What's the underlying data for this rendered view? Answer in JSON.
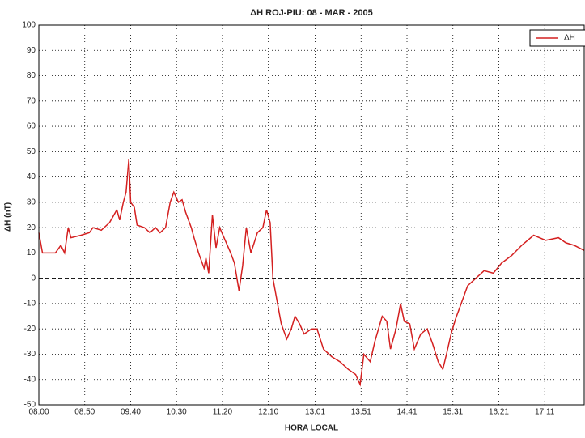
{
  "chart_data": {
    "type": "line",
    "title": "ΔH ROJ-PIU: 08 - MAR - 2005",
    "xlabel": "HORA LOCAL",
    "ylabel": "ΔH (nT)",
    "x": [
      480,
      484,
      489,
      498,
      504,
      508,
      512,
      515,
      526,
      535,
      539,
      548,
      557,
      565,
      568,
      572,
      575,
      578,
      580,
      584,
      587,
      595,
      601,
      607,
      612,
      618,
      623,
      627,
      632,
      636,
      640,
      646,
      649,
      654,
      660,
      662,
      665,
      669,
      673,
      677,
      683,
      689,
      693,
      698,
      702,
      706,
      711,
      718,
      724,
      728,
      732,
      735,
      740,
      744,
      750,
      755,
      759,
      764,
      769,
      777,
      783,
      790,
      799,
      808,
      817,
      825,
      830,
      834,
      841,
      846,
      850,
      854,
      859,
      863,
      869,
      874,
      878,
      884,
      889,
      896,
      903,
      909,
      915,
      920,
      924,
      929,
      934,
      940,
      947,
      956,
      965,
      975,
      984,
      995,
      1006,
      1019,
      1032,
      1046,
      1054,
      1063,
      1074
    ],
    "series": [
      {
        "name": "ΔH",
        "color": "#d42020",
        "values": [
          18,
          10,
          10,
          10,
          13,
          10,
          20,
          16,
          17,
          18,
          20,
          19,
          22,
          27,
          23,
          30,
          34,
          47,
          30,
          28,
          21,
          20,
          18,
          20,
          18,
          20,
          30,
          34,
          30,
          31,
          26,
          20,
          16,
          10,
          4,
          8,
          2,
          25,
          12,
          20,
          15,
          10,
          6,
          -5,
          5,
          20,
          10,
          18,
          20,
          27,
          22,
          0,
          -10,
          -18,
          -24,
          -20,
          -15,
          -18,
          -22,
          -20,
          -20,
          -28,
          -31,
          -33,
          -36,
          -38,
          -42,
          -30,
          -33,
          -25,
          -20,
          -15,
          -17,
          -28,
          -20,
          -10,
          -17,
          -18,
          -28,
          -22,
          -20,
          -26,
          -33,
          -36,
          -30,
          -22,
          -16,
          -10,
          -3,
          0,
          3,
          2,
          6,
          9,
          13,
          17,
          15,
          16,
          14,
          13,
          11
        ]
      }
    ],
    "xlim": [
      480,
      1074
    ],
    "xticks": [
      {
        "value": 480,
        "label": "08:00"
      },
      {
        "value": 530,
        "label": "08:50"
      },
      {
        "value": 580,
        "label": "09:40"
      },
      {
        "value": 630,
        "label": "10:30"
      },
      {
        "value": 680,
        "label": "11:20"
      },
      {
        "value": 730,
        "label": "12:10"
      },
      {
        "value": 781,
        "label": "13:01"
      },
      {
        "value": 831,
        "label": "13:51"
      },
      {
        "value": 881,
        "label": "14:41"
      },
      {
        "value": 931,
        "label": "15:31"
      },
      {
        "value": 981,
        "label": "16:21"
      },
      {
        "value": 1031,
        "label": "17:11"
      }
    ],
    "ylim": [
      -50,
      100
    ],
    "yticks": [
      -50,
      -40,
      -30,
      -20,
      -10,
      0,
      10,
      20,
      30,
      40,
      50,
      60,
      70,
      80,
      90,
      100
    ],
    "hline": 0,
    "grid": true,
    "legend": "upper right"
  }
}
